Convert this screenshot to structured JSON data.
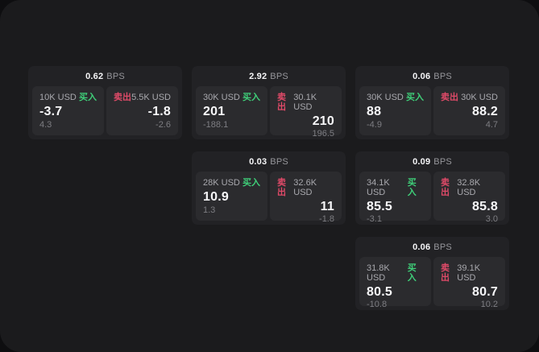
{
  "labels": {
    "unit": "BPS",
    "buy": "买入",
    "sell": "卖出"
  },
  "colors": {
    "background": "#0e0e10",
    "surface": "#1b1b1d",
    "card": "#222225",
    "panel": "#2b2b2e",
    "buy_green": "#3fcf79",
    "sell_red": "#df4a68",
    "text_primary": "#f7f7f9",
    "text_secondary": "#a9a9ae",
    "text_muted": "#7d7d82"
  },
  "cards": [
    {
      "bps": "0.62",
      "buy": {
        "size": "10K USD",
        "value": "-3.7",
        "delta": "4.3"
      },
      "sell": {
        "size": "5.5K USD",
        "value": "-1.8",
        "delta": "-2.6"
      }
    },
    {
      "bps": "2.92",
      "buy": {
        "size": "30K USD",
        "value": "201",
        "delta": "-188.1"
      },
      "sell": {
        "size": "30.1K USD",
        "value": "210",
        "delta": "196.5"
      }
    },
    {
      "bps": "0.06",
      "buy": {
        "size": "30K USD",
        "value": "88",
        "delta": "-4.9"
      },
      "sell": {
        "size": "30K USD",
        "value": "88.2",
        "delta": "4.7"
      }
    },
    {
      "bps": "0.03",
      "buy": {
        "size": "28K USD",
        "value": "10.9",
        "delta": "1.3"
      },
      "sell": {
        "size": "32.6K USD",
        "value": "11",
        "delta": "-1.8"
      }
    },
    {
      "bps": "0.09",
      "buy": {
        "size": "34.1K USD",
        "value": "85.5",
        "delta": "-3.1"
      },
      "sell": {
        "size": "32.8K USD",
        "value": "85.8",
        "delta": "3.0"
      }
    },
    {
      "bps": "0.06",
      "buy": {
        "size": "31.8K USD",
        "value": "80.5",
        "delta": "-10.8"
      },
      "sell": {
        "size": "39.1K USD",
        "value": "80.7",
        "delta": "10.2"
      }
    }
  ]
}
